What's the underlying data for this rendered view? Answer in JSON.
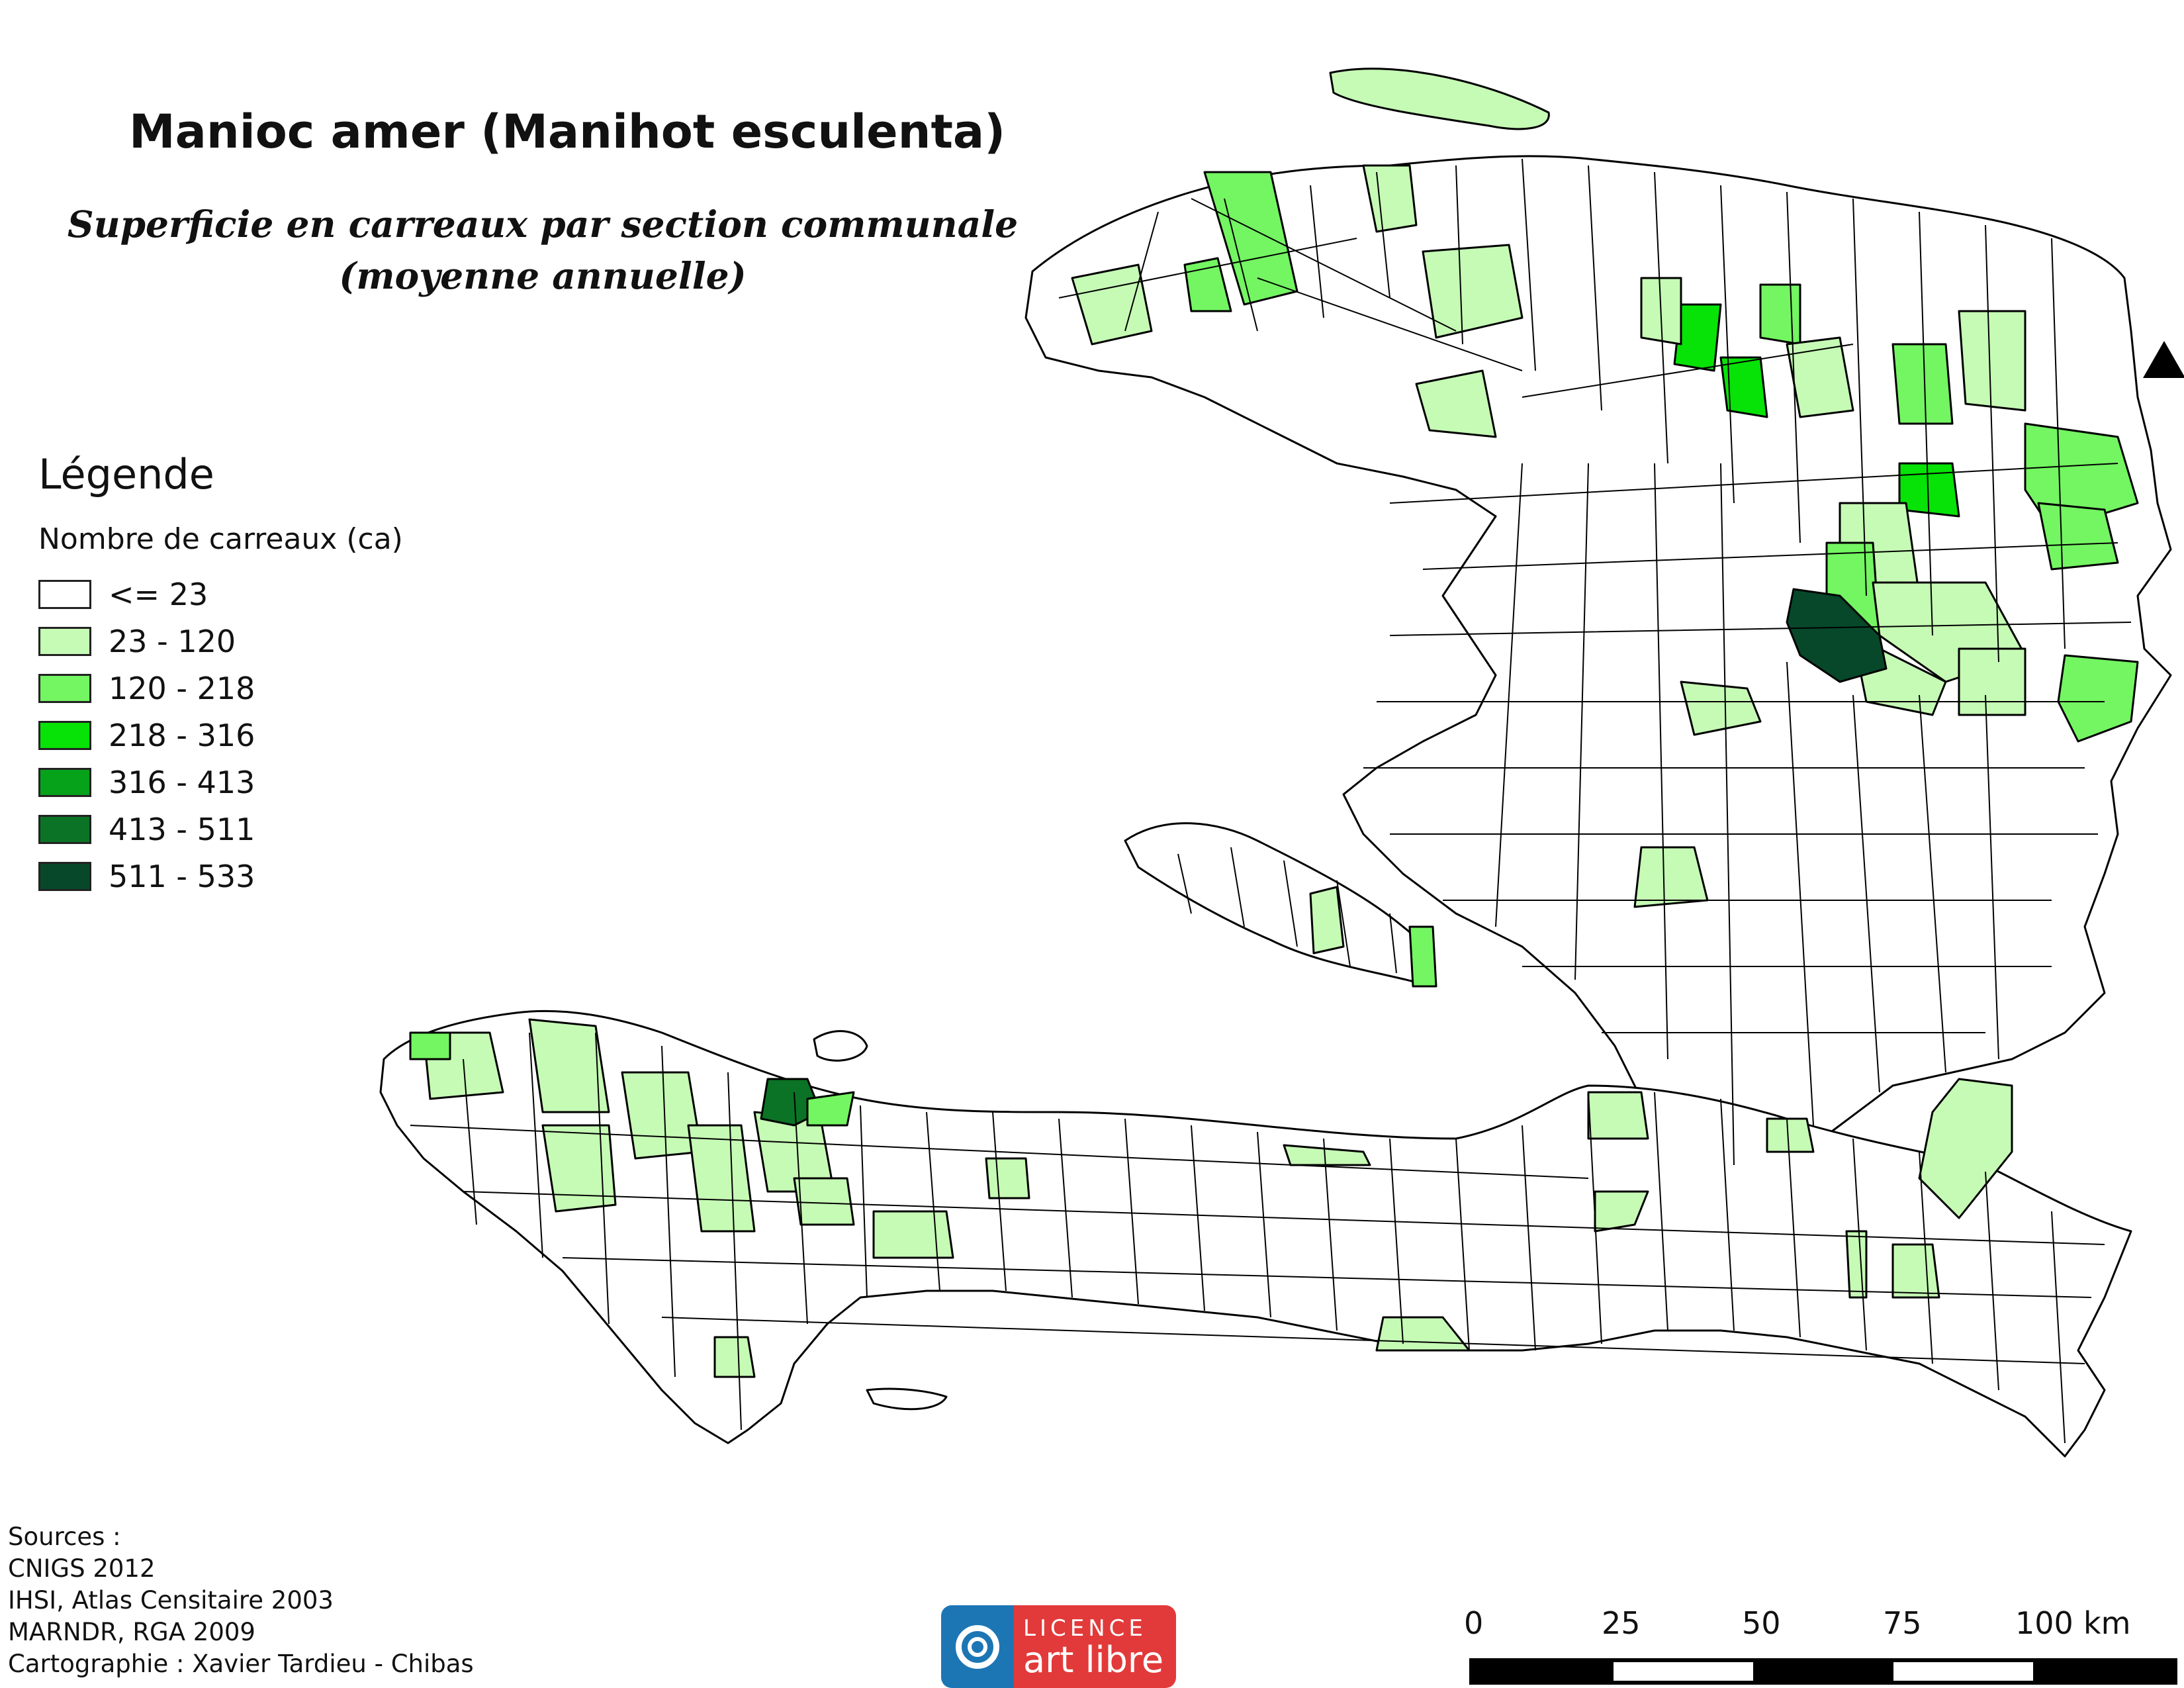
{
  "title": "Manioc amer (Manihot esculenta)",
  "subtitle_line1": "Superficie en carreaux par section communale",
  "subtitle_line2": "(moyenne annuelle)",
  "legend": {
    "heading": "Légende",
    "subheading": "Nombre de carreaux (ca)",
    "classes": [
      {
        "label": "<= 23",
        "color": "#ffffff"
      },
      {
        "label": "23 - 120",
        "color": "#c6fbb5"
      },
      {
        "label": "120 - 218",
        "color": "#74f562"
      },
      {
        "label": "218 - 316",
        "color": "#07e207"
      },
      {
        "label": "316 - 413",
        "color": "#06a21a"
      },
      {
        "label": "413 - 511",
        "color": "#0b7325"
      },
      {
        "label": "511 - 533",
        "color": "#07482a"
      }
    ]
  },
  "sources": [
    "Sources :",
    "CNIGS 2012",
    "IHSI, Atlas Censitaire 2003",
    "MARNDR, RGA 2009",
    "Cartographie : Xavier Tardieu - Chibas"
  ],
  "license": {
    "top": "LICENCE",
    "bottom": "art libre"
  },
  "scale": {
    "ticks": [
      "0",
      "25",
      "50",
      "75",
      "100"
    ],
    "unit": "km"
  },
  "north_arrow": "north-arrow-icon",
  "map_colors": {
    "outline": "#000000",
    "low": "#ffffff"
  }
}
